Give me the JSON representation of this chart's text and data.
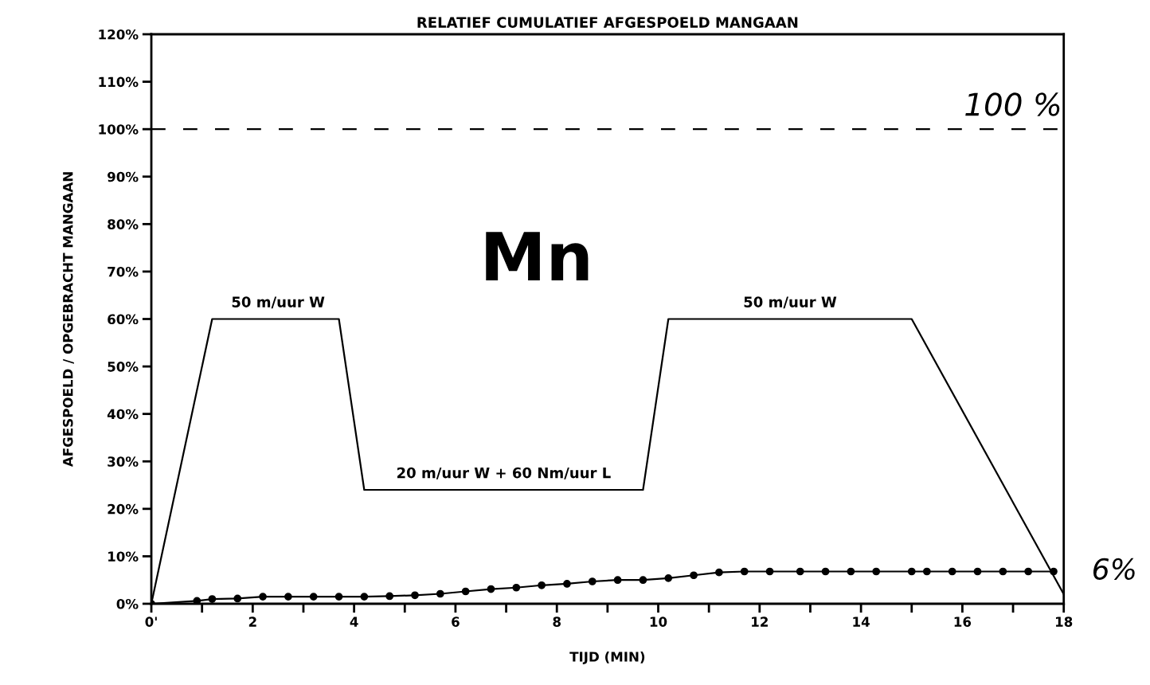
{
  "chart_data": {
    "type": "line",
    "title": "RELATIEF CUMULATIEF AFGESPOELD MANGAAN",
    "xlabel": "TIJD (MIN)",
    "ylabel": "AFGESPOELD / OPGEBRACHT MANGAAN",
    "xlim": [
      0,
      18
    ],
    "xticks": [
      {
        "value": 0,
        "label": "0'"
      },
      {
        "value": 1,
        "label": null
      },
      2,
      {
        "value": 3,
        "label": null
      },
      4,
      {
        "value": 5,
        "label": null
      },
      6,
      {
        "value": 7,
        "label": null
      },
      8,
      {
        "value": 9,
        "label": null
      },
      10,
      {
        "value": 11,
        "label": null
      },
      12,
      {
        "value": 13,
        "label": null
      },
      14,
      {
        "value": 15,
        "label": null
      },
      16,
      {
        "value": 17,
        "label": null
      },
      18
    ],
    "ylim": [
      0,
      120
    ],
    "yticks": [
      {
        "value": 0,
        "label": "0%"
      },
      {
        "value": 10,
        "label": "10%"
      },
      {
        "value": 20,
        "label": "20%"
      },
      {
        "value": 30,
        "label": "30%"
      },
      {
        "value": 40,
        "label": "40%"
      },
      {
        "value": 50,
        "label": "50%"
      },
      {
        "value": 60,
        "label": "60%"
      },
      {
        "value": 70,
        "label": "70%"
      },
      {
        "value": 80,
        "label": "80%"
      },
      {
        "value": 90,
        "label": "90%"
      },
      {
        "value": 100,
        "label": "100%"
      },
      {
        "value": 110,
        "label": "110%"
      },
      {
        "value": 120,
        "label": "120%"
      }
    ],
    "grid": false,
    "legend": false,
    "series": [
      {
        "color": "#000000",
        "marker": "none",
        "line_style": "solid",
        "x": [
          0,
          1.2,
          3.7,
          4.2,
          9.7,
          10.2,
          15.0,
          18
        ],
        "values": [
          0,
          60,
          60,
          24,
          24,
          60,
          60,
          2
        ]
      },
      {
        "color": "#000000",
        "marker": "circle",
        "line_style": "solid",
        "x": [
          0,
          0.9,
          1.2,
          1.7,
          2.2,
          2.7,
          3.2,
          3.7,
          4.2,
          4.7,
          5.2,
          5.7,
          6.2,
          6.7,
          7.2,
          7.7,
          8.2,
          8.7,
          9.2,
          9.7,
          10.2,
          10.7,
          11.2,
          11.7,
          12.2,
          12.8,
          13.3,
          13.8,
          14.3,
          15.0,
          15.3,
          15.8,
          16.3,
          16.8,
          17.3,
          17.8
        ],
        "values": [
          0,
          0.6,
          1.0,
          1.1,
          1.5,
          1.5,
          1.5,
          1.5,
          1.5,
          1.6,
          1.8,
          2.1,
          2.6,
          3.1,
          3.4,
          3.9,
          4.2,
          4.7,
          5.0,
          5.0,
          5.4,
          6.0,
          6.6,
          6.8,
          6.8,
          6.8,
          6.8,
          6.8,
          6.8,
          6.8,
          6.8,
          6.8,
          6.8,
          6.8,
          6.8,
          6.8
        ]
      }
    ],
    "ref_lines": [
      {
        "axis": "y",
        "value": 100,
        "label": "100 %",
        "color": "#000000",
        "line_style": "dashed"
      }
    ],
    "annotations": [
      {
        "text": "50 m/uur W",
        "x": 2.5,
        "y": 60
      },
      {
        "text": "50 m/uur W",
        "x": 12.6,
        "y": 60
      },
      {
        "text": "20 m/uur W + 60 Nm/uur L",
        "x": 6.95,
        "y": 24
      },
      "6%",
      "Mn"
    ]
  }
}
